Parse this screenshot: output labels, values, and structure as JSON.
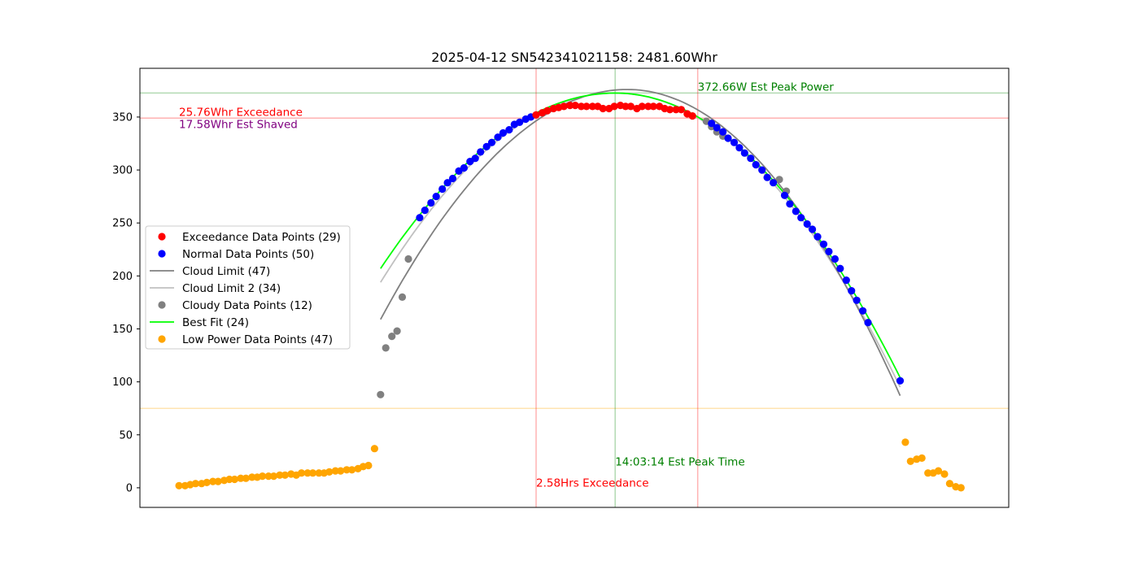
{
  "chart_data": {
    "type": "scatter",
    "title": "2025-04-12 SN542341021158: 2481.60Whr",
    "xlabel": "",
    "ylabel": "",
    "xlim": [
      0,
      100
    ],
    "ylim": [
      -18.5,
      396
    ],
    "yticks": [
      0,
      50,
      100,
      150,
      200,
      250,
      300,
      350
    ],
    "xticks_visible": false,
    "grid": false,
    "legend_position": "center-left",
    "legend": [
      {
        "label": "Exceedance Data Points (29)",
        "kind": "marker",
        "color": "#ff0000"
      },
      {
        "label": "Normal Data Points (50)",
        "kind": "marker",
        "color": "#0000ff"
      },
      {
        "label": "Cloud Limit (47)",
        "kind": "line",
        "color": "#808080"
      },
      {
        "label": "Cloud Limit 2 (34)",
        "kind": "line",
        "color": "#c0c0c0"
      },
      {
        "label": "Cloudy Data Points (12)",
        "kind": "marker",
        "color": "#808080"
      },
      {
        "label": "Best Fit (24)",
        "kind": "line",
        "color": "#00ff00"
      },
      {
        "label": "Low Power Data Points (47)",
        "kind": "marker",
        "color": "#ffa500"
      }
    ],
    "annotations": {
      "exceedance_whr": {
        "text": "25.76Whr Exceedance",
        "color": "#ff0000",
        "x": 4.5,
        "y": 351
      },
      "shaved_whr": {
        "text": "17.58Whr Est Shaved",
        "color": "#800080",
        "x": 4.5,
        "y": 339.5
      },
      "peak_power": {
        "text": "372.66W Est Peak Power",
        "color": "#008000",
        "x": 64.2,
        "y": 375
      },
      "peak_time": {
        "text": "14:03:14 Est Peak Time",
        "color": "#008000",
        "x": 54.7,
        "y": 21
      },
      "exceedance_hrs": {
        "text": "2.58Hrs Exceedance",
        "color": "#ff0000",
        "x": 45.6,
        "y": 1
      }
    },
    "reference_lines": {
      "peak_power_y": 372.66,
      "exceedance_threshold_y": 349,
      "low_power_y": 75,
      "exceedance_start_x": 45.6,
      "exceedance_end_x": 64.2,
      "peak_time_x": 54.7
    },
    "series": [
      {
        "name": "Low Power Data Points (47)",
        "color": "#ffa500",
        "points": [
          [
            4.5,
            2
          ],
          [
            5.2,
            2
          ],
          [
            5.8,
            3
          ],
          [
            6.4,
            4
          ],
          [
            7.1,
            4
          ],
          [
            7.7,
            5
          ],
          [
            8.4,
            6
          ],
          [
            9.0,
            6
          ],
          [
            9.7,
            7
          ],
          [
            10.3,
            8
          ],
          [
            10.9,
            8
          ],
          [
            11.6,
            9
          ],
          [
            12.2,
            9
          ],
          [
            12.9,
            10
          ],
          [
            13.5,
            10
          ],
          [
            14.1,
            11
          ],
          [
            14.8,
            11
          ],
          [
            15.4,
            11
          ],
          [
            16.1,
            12
          ],
          [
            16.7,
            12
          ],
          [
            17.4,
            13
          ],
          [
            18.0,
            12
          ],
          [
            18.6,
            14
          ],
          [
            19.3,
            14
          ],
          [
            19.9,
            14
          ],
          [
            20.6,
            14
          ],
          [
            21.2,
            14
          ],
          [
            21.8,
            15
          ],
          [
            22.5,
            16
          ],
          [
            23.1,
            16
          ],
          [
            23.8,
            17
          ],
          [
            24.4,
            17
          ],
          [
            25.1,
            18
          ],
          [
            25.7,
            20
          ],
          [
            26.3,
            21
          ],
          [
            27.0,
            37
          ],
          [
            88.1,
            43
          ],
          [
            88.7,
            25
          ],
          [
            89.4,
            27
          ],
          [
            90.0,
            28
          ],
          [
            90.7,
            14
          ],
          [
            91.3,
            14
          ],
          [
            91.9,
            16
          ],
          [
            92.6,
            13
          ],
          [
            93.2,
            4
          ],
          [
            93.9,
            1
          ],
          [
            94.5,
            0
          ]
        ]
      },
      {
        "name": "Cloudy Data Points (12)",
        "color": "#808080",
        "points": [
          [
            27.7,
            88
          ],
          [
            28.3,
            132
          ],
          [
            29.0,
            143
          ],
          [
            29.6,
            148
          ],
          [
            30.2,
            180
          ],
          [
            30.9,
            216
          ],
          [
            65.2,
            346
          ],
          [
            65.8,
            341
          ],
          [
            66.4,
            336
          ],
          [
            67.1,
            332
          ],
          [
            73.6,
            291
          ],
          [
            74.4,
            280
          ]
        ]
      },
      {
        "name": "Normal Data Points (50)",
        "color": "#0000ff",
        "points": [
          [
            32.2,
            255
          ],
          [
            32.8,
            262
          ],
          [
            33.5,
            269
          ],
          [
            34.1,
            275
          ],
          [
            34.8,
            282
          ],
          [
            35.4,
            288
          ],
          [
            36.0,
            292
          ],
          [
            36.7,
            299
          ],
          [
            37.3,
            302
          ],
          [
            38.0,
            308
          ],
          [
            38.6,
            311
          ],
          [
            39.2,
            317
          ],
          [
            39.9,
            322
          ],
          [
            40.5,
            326
          ],
          [
            41.2,
            331
          ],
          [
            41.8,
            335
          ],
          [
            42.5,
            338
          ],
          [
            43.1,
            343
          ],
          [
            43.7,
            345
          ],
          [
            44.4,
            348
          ],
          [
            45.0,
            350
          ],
          [
            65.8,
            344
          ],
          [
            66.4,
            340
          ],
          [
            67.1,
            336
          ],
          [
            67.7,
            330
          ],
          [
            68.4,
            326
          ],
          [
            69.0,
            321
          ],
          [
            69.6,
            316
          ],
          [
            70.3,
            311
          ],
          [
            70.9,
            305
          ],
          [
            71.6,
            300
          ],
          [
            72.2,
            293
          ],
          [
            72.9,
            288
          ],
          [
            74.2,
            276
          ],
          [
            74.8,
            268
          ],
          [
            75.5,
            261
          ],
          [
            76.1,
            255
          ],
          [
            76.8,
            249
          ],
          [
            77.4,
            244
          ],
          [
            78.0,
            237
          ],
          [
            78.7,
            230
          ],
          [
            79.3,
            223
          ],
          [
            80.0,
            216
          ],
          [
            80.6,
            207
          ],
          [
            81.3,
            196
          ],
          [
            81.9,
            186
          ],
          [
            82.5,
            177
          ],
          [
            83.2,
            167
          ],
          [
            83.8,
            156
          ],
          [
            87.5,
            101
          ]
        ]
      },
      {
        "name": "Exceedance Data Points (29)",
        "color": "#ff0000",
        "points": [
          [
            45.6,
            352
          ],
          [
            46.3,
            354
          ],
          [
            46.9,
            356
          ],
          [
            47.6,
            358
          ],
          [
            48.2,
            359
          ],
          [
            48.8,
            360
          ],
          [
            49.5,
            361
          ],
          [
            50.1,
            361
          ],
          [
            50.8,
            360
          ],
          [
            51.4,
            360
          ],
          [
            52.1,
            360
          ],
          [
            52.7,
            360
          ],
          [
            53.3,
            358
          ],
          [
            54.0,
            358
          ],
          [
            54.6,
            360
          ],
          [
            55.3,
            361
          ],
          [
            55.9,
            360
          ],
          [
            56.5,
            360
          ],
          [
            57.2,
            358
          ],
          [
            57.8,
            360
          ],
          [
            58.5,
            360
          ],
          [
            59.1,
            360
          ],
          [
            59.8,
            360
          ],
          [
            60.4,
            358
          ],
          [
            61.0,
            357
          ],
          [
            61.7,
            357
          ],
          [
            62.3,
            357
          ],
          [
            63.0,
            353
          ],
          [
            63.6,
            351
          ]
        ]
      }
    ],
    "curves": [
      {
        "name": "Cloud Limit 2 (34)",
        "color": "#c0c0c0",
        "x_range": [
          27.7,
          87.5
        ],
        "peak_x": 54.7,
        "peak_y": 372.66,
        "end_y": 95,
        "start_y": 194
      },
      {
        "name": "Cloud Limit (47)",
        "color": "#808080",
        "x_range": [
          27.7,
          87.5
        ],
        "peak_x": 56.1,
        "peak_y": 376,
        "end_y": 87,
        "start_y": 159
      },
      {
        "name": "Best Fit (24)",
        "color": "#00ff00",
        "x_range": [
          27.7,
          87.5
        ],
        "peak_x": 54.7,
        "peak_y": 372.66,
        "end_y": 104,
        "start_y": 207
      }
    ]
  }
}
